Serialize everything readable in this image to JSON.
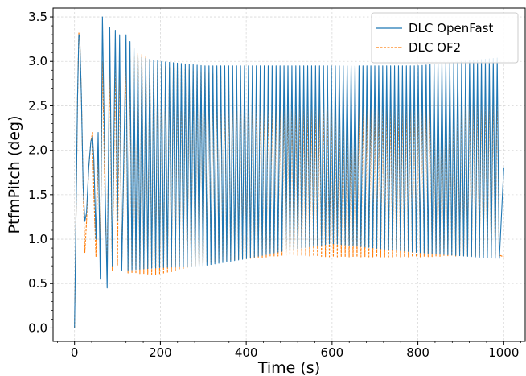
{
  "chart_data": {
    "type": "line",
    "xlabel": "Time (s)",
    "ylabel": "PtfmPitch (deg)",
    "xlim": [
      -50,
      1050
    ],
    "ylim": [
      -0.15,
      3.6
    ],
    "x_ticks": [
      0,
      200,
      400,
      600,
      800,
      1000
    ],
    "x_tick_labels": [
      "0",
      "200",
      "400",
      "600",
      "800",
      "1000"
    ],
    "y_ticks": [
      0.0,
      0.5,
      1.0,
      1.5,
      2.0,
      2.5,
      3.0,
      3.5
    ],
    "y_tick_labels": [
      "0.0",
      "0.5",
      "1.0",
      "1.5",
      "2.0",
      "2.5",
      "3.0",
      "3.5"
    ],
    "grid": true,
    "legend_position": "top-right",
    "oscillation_period_s": 9.2,
    "series": [
      {
        "name": "DLC OpenFast",
        "color": "#1f77b4",
        "style": "solid",
        "x": [
          0,
          7,
          10,
          12,
          16,
          20,
          24,
          28,
          33,
          38,
          42,
          45,
          50,
          55,
          60,
          65,
          72,
          76,
          82,
          88,
          95,
          100,
          105,
          110,
          120,
          130,
          140,
          150,
          200,
          300,
          400,
          500,
          600,
          700,
          800,
          900,
          990,
          1000
        ],
        "y": [
          0.0,
          2.6,
          3.3,
          3.3,
          2.6,
          1.6,
          1.2,
          1.3,
          1.8,
          2.1,
          2.15,
          1.9,
          1.0,
          2.2,
          0.55,
          3.5,
          1.4,
          0.45,
          3.38,
          0.7,
          3.35,
          1.2,
          3.3,
          0.65,
          3.15,
          0.7,
          3.1,
          0.65,
          0.68,
          0.7,
          0.8,
          0.9,
          0.95,
          0.9,
          0.85,
          0.8,
          0.8,
          1.8
        ],
        "upper_envelope": [
          [
            120,
            3.3
          ],
          [
            150,
            3.05
          ],
          [
            200,
            3.0
          ],
          [
            300,
            2.95
          ],
          [
            400,
            2.95
          ],
          [
            600,
            2.95
          ],
          [
            800,
            2.95
          ],
          [
            990,
            3.04
          ]
        ],
        "lower_envelope": [
          [
            120,
            0.65
          ],
          [
            200,
            0.68
          ],
          [
            300,
            0.7
          ],
          [
            400,
            0.78
          ],
          [
            500,
            0.88
          ],
          [
            600,
            0.95
          ],
          [
            700,
            0.9
          ],
          [
            800,
            0.85
          ],
          [
            990,
            0.78
          ]
        ]
      },
      {
        "name": "DLC OF2",
        "color": "#ff7f0e",
        "style": "dashed",
        "x": [
          0,
          7,
          10,
          12,
          16,
          20,
          24,
          28,
          33,
          38,
          42,
          45,
          50,
          55,
          60,
          65,
          72,
          76,
          82,
          88,
          95,
          100,
          105,
          110,
          120,
          130,
          140,
          150,
          200,
          300,
          400,
          500,
          600,
          700,
          800,
          900,
          990,
          1000
        ],
        "y": [
          0.0,
          2.6,
          3.32,
          3.3,
          2.6,
          1.6,
          0.85,
          1.2,
          1.8,
          2.1,
          2.2,
          1.5,
          0.8,
          2.0,
          0.8,
          3.0,
          1.2,
          0.75,
          3.0,
          0.65,
          2.98,
          0.7,
          3.0,
          0.7,
          3.0,
          0.65,
          3.05,
          0.6,
          0.6,
          0.75,
          0.78,
          0.82,
          0.8,
          0.8,
          0.8,
          0.8,
          0.82,
          0.8
        ],
        "upper_envelope": [
          [
            120,
            3.0
          ],
          [
            150,
            3.1
          ],
          [
            200,
            2.95
          ],
          [
            300,
            2.88
          ],
          [
            400,
            2.78
          ],
          [
            500,
            2.62
          ],
          [
            600,
            2.52
          ],
          [
            700,
            2.55
          ],
          [
            800,
            2.62
          ],
          [
            900,
            2.68
          ],
          [
            990,
            2.76
          ]
        ],
        "lower_envelope": [
          [
            120,
            0.62
          ],
          [
            200,
            0.6
          ],
          [
            300,
            0.73
          ],
          [
            400,
            0.78
          ],
          [
            500,
            0.82
          ],
          [
            600,
            0.8
          ],
          [
            700,
            0.8
          ],
          [
            800,
            0.8
          ],
          [
            990,
            0.82
          ]
        ]
      }
    ]
  }
}
